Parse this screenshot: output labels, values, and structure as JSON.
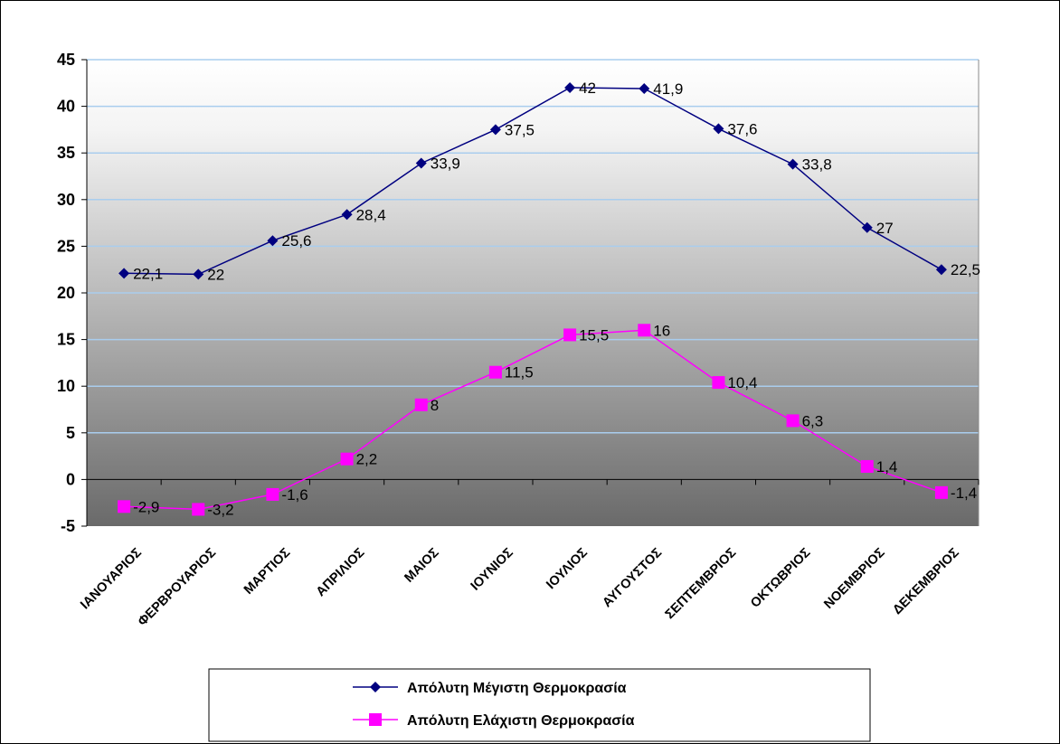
{
  "chart_data": {
    "type": "line",
    "title": "",
    "xlabel": "",
    "ylabel": "",
    "ylim": [
      -5,
      45
    ],
    "ytick_step": 5,
    "grid": "horizontal",
    "legend_position": "bottom",
    "categories": [
      "ΙΑΝΟΥΑΡΙΟΣ",
      "ΦΕΡΒΡΟΥΑΡΙΟΣ",
      "ΜΑΡΤΙΟΣ",
      "ΑΠΡΙΛΙΟΣ",
      "ΜΑΙΟΣ",
      "ΙΟΥΝΙΟΣ",
      "ΙΟΥΛΙΟΣ",
      "ΑΥΓΟΥΣΤΟΣ",
      "ΣΕΠΤΕΜΒΡΙΟΣ",
      "ΟΚΤΩΒΡΙΟΣ",
      "ΝΟΕΜΒΡΙΟΣ",
      "ΔΕΚΕΜΒΡΙΟΣ"
    ],
    "series": [
      {
        "name": "Απόλυτη Μέγιστη Θερμοκρασία",
        "values": [
          22.1,
          22,
          25.6,
          28.4,
          33.9,
          37.5,
          42,
          41.9,
          37.6,
          33.8,
          27,
          22.5
        ],
        "labels": [
          "22,1",
          "22",
          "25,6",
          "28,4",
          "33,9",
          "37,5",
          "42",
          "41,9",
          "37,6",
          "33,8",
          "27",
          "22,5"
        ],
        "color": "#000080",
        "marker": "diamond"
      },
      {
        "name": "Απόλυτη Ελάχιστη Θερμοκρασία",
        "values": [
          -2.9,
          -3.2,
          -1.6,
          2.2,
          8,
          11.5,
          15.5,
          16,
          10.4,
          6.3,
          1.4,
          -1.4
        ],
        "labels": [
          "-2,9",
          "-3,2",
          "-1,6",
          "2,2",
          "8",
          "11,5",
          "15,5",
          "16",
          "10,4",
          "6,3",
          "1,4",
          "-1,4"
        ],
        "color": "#ff00ff",
        "marker": "square"
      }
    ]
  }
}
